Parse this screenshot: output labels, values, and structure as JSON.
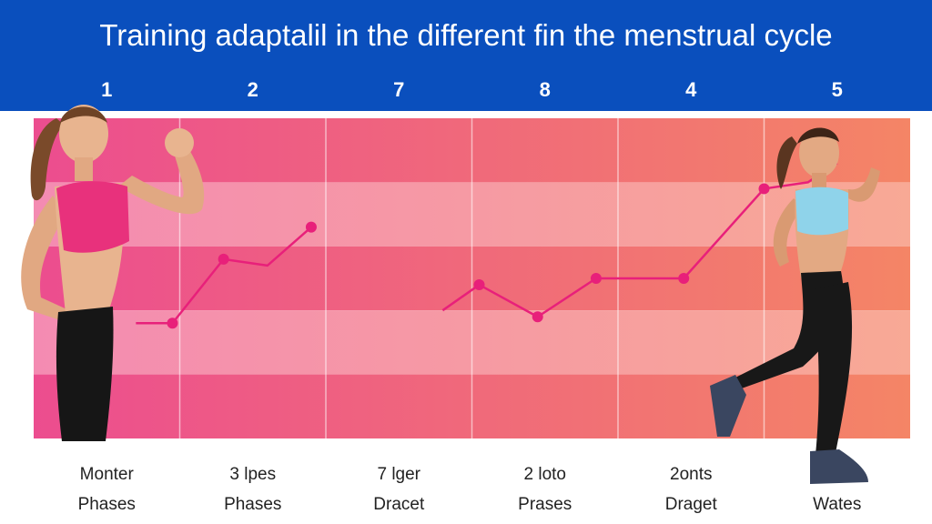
{
  "title": "Training adaptalil in the different fin the menstrual cycle",
  "colors": {
    "header": "#0a4fbd",
    "line": "#e8207a",
    "band_dark_left": "#ec4d8f",
    "band_light_left": "#f48bb2",
    "band_dark_right": "#f48566",
    "band_light_right": "#f8a995"
  },
  "chart_data": {
    "type": "line",
    "categories": [
      "1",
      "2",
      "7",
      "8",
      "4",
      "5"
    ],
    "phase_labels": [
      {
        "line1": "Monter",
        "line2": "Phases"
      },
      {
        "line1": "3 lpes",
        "line2": "Phases"
      },
      {
        "line1": "7 lger",
        "line2": "Dracet"
      },
      {
        "line1": "2 loto",
        "line2": "Prases"
      },
      {
        "line1": "2onts",
        "line2": "Draget"
      },
      {
        "line1": "",
        "line2": "Wates"
      }
    ],
    "grid": true,
    "legend": "none",
    "ylim": [
      0,
      5
    ],
    "segments": [
      {
        "points": [
          [
            1.2,
            1.8
          ],
          [
            1.45,
            1.8
          ],
          [
            1.8,
            2.8
          ],
          [
            2.1,
            2.7
          ],
          [
            2.4,
            3.3
          ]
        ]
      },
      {
        "points": [
          [
            3.3,
            2.0
          ],
          [
            3.55,
            2.4
          ],
          [
            3.95,
            1.9
          ],
          [
            4.35,
            2.5
          ],
          [
            4.95,
            2.5
          ],
          [
            5.5,
            3.9
          ],
          [
            5.8,
            4.0
          ],
          [
            6.0,
            4.3
          ]
        ]
      }
    ],
    "markers": [
      [
        1.45,
        1.8
      ],
      [
        1.8,
        2.8
      ],
      [
        2.4,
        3.3
      ],
      [
        3.55,
        2.4
      ],
      [
        3.95,
        1.9
      ],
      [
        4.35,
        2.5
      ],
      [
        4.95,
        2.5
      ],
      [
        5.5,
        3.9
      ]
    ]
  },
  "figures": {
    "left": "woman-flexing-figure",
    "right": "woman-running-figure"
  }
}
